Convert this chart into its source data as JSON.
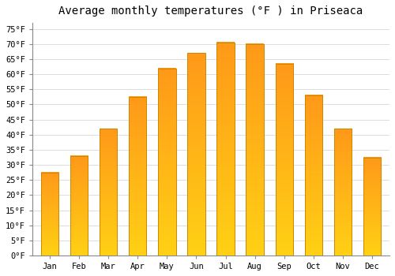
{
  "title": "Average monthly temperatures (°F ) in Priseaca",
  "months": [
    "Jan",
    "Feb",
    "Mar",
    "Apr",
    "May",
    "Jun",
    "Jul",
    "Aug",
    "Sep",
    "Oct",
    "Nov",
    "Dec"
  ],
  "values": [
    27.5,
    33.0,
    42.0,
    52.5,
    62.0,
    67.0,
    70.5,
    70.0,
    63.5,
    53.0,
    42.0,
    32.5
  ],
  "bar_color_bottom": "#FFD000",
  "bar_color_top": "#FFA020",
  "bar_edge_color": "#CC8800",
  "background_color": "#FFFFFF",
  "grid_color": "#DDDDDD",
  "ylim": [
    0,
    77
  ],
  "yticks": [
    0,
    5,
    10,
    15,
    20,
    25,
    30,
    35,
    40,
    45,
    50,
    55,
    60,
    65,
    70,
    75
  ],
  "ytick_labels": [
    "0°F",
    "5°F",
    "10°F",
    "15°F",
    "20°F",
    "25°F",
    "30°F",
    "35°F",
    "40°F",
    "45°F",
    "50°F",
    "55°F",
    "60°F",
    "65°F",
    "70°F",
    "75°F"
  ],
  "title_fontsize": 10,
  "tick_fontsize": 7.5,
  "font_family": "monospace",
  "bar_width": 0.6
}
